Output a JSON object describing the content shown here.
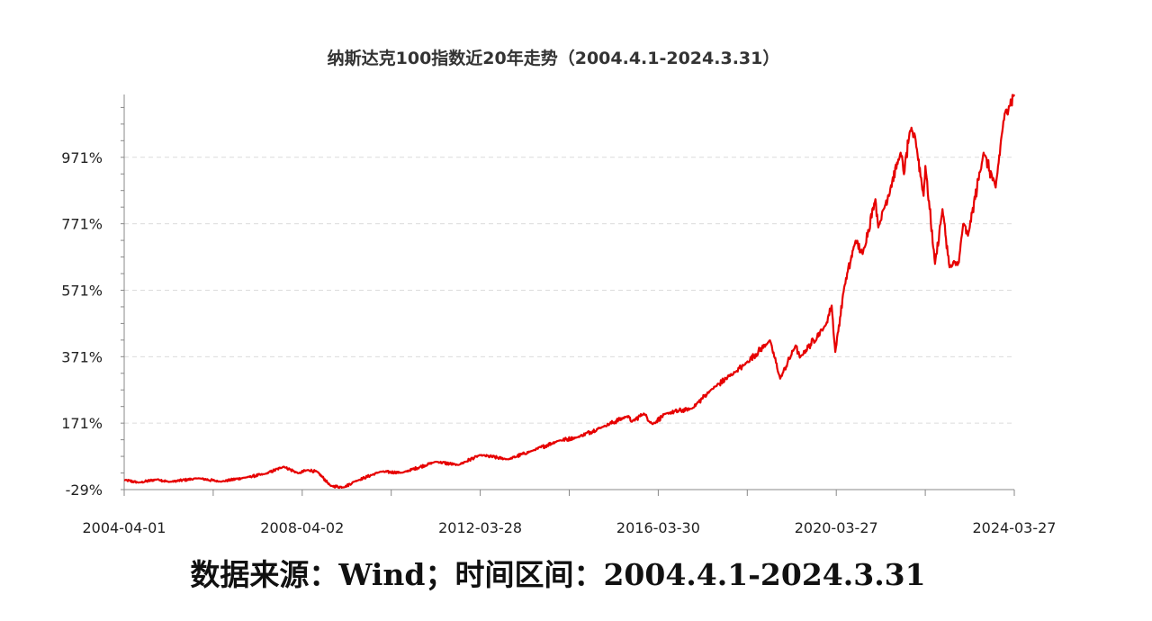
{
  "chart_data": {
    "type": "line",
    "title": "纳斯达克100指数近20年走势（2004.4.1-2024.3.31）",
    "ylabel": "",
    "xlabel": "",
    "y_unit": "%",
    "ylim": [
      -29,
      1160
    ],
    "y_ticks": [
      -29,
      171,
      371,
      571,
      771,
      971
    ],
    "y_tick_labels": [
      "-29%",
      "171%",
      "371%",
      "571%",
      "771%",
      "971%"
    ],
    "x_tick_labels": [
      "2004-04-01",
      "2008-04-02",
      "2012-03-28",
      "2016-03-30",
      "2020-03-27",
      "2024-03-27"
    ],
    "grid": "horizontal dashed",
    "series": [
      {
        "color": "#e60000",
        "points": [
          [
            "2004-04-01",
            0
          ],
          [
            "2004-08-01",
            -8
          ],
          [
            "2005-01-01",
            2
          ],
          [
            "2005-04-01",
            -6
          ],
          [
            "2005-12-01",
            5
          ],
          [
            "2006-06-01",
            -5
          ],
          [
            "2007-01-01",
            8
          ],
          [
            "2007-06-01",
            18
          ],
          [
            "2007-10-31",
            40
          ],
          [
            "2008-03-01",
            20
          ],
          [
            "2008-05-15",
            30
          ],
          [
            "2008-08-01",
            25
          ],
          [
            "2008-11-20",
            -18
          ],
          [
            "2009-03-09",
            -22
          ],
          [
            "2009-06-01",
            -5
          ],
          [
            "2010-01-01",
            25
          ],
          [
            "2010-07-01",
            22
          ],
          [
            "2011-04-01",
            55
          ],
          [
            "2011-10-01",
            45
          ],
          [
            "2012-03-28",
            75
          ],
          [
            "2012-11-15",
            62
          ],
          [
            "2013-06-01",
            88
          ],
          [
            "2013-12-31",
            118
          ],
          [
            "2014-06-01",
            128
          ],
          [
            "2014-12-31",
            160
          ],
          [
            "2015-07-20",
            192
          ],
          [
            "2015-08-25",
            175
          ],
          [
            "2015-12-01",
            200
          ],
          [
            "2016-02-11",
            168
          ],
          [
            "2016-06-01",
            200
          ],
          [
            "2016-12-31",
            215
          ],
          [
            "2017-06-01",
            270
          ],
          [
            "2017-12-31",
            328
          ],
          [
            "2018-03-01",
            345
          ],
          [
            "2018-10-01",
            420
          ],
          [
            "2018-12-24",
            305
          ],
          [
            "2019-04-30",
            405
          ],
          [
            "2019-06-03",
            368
          ],
          [
            "2019-12-31",
            465
          ],
          [
            "2020-02-19",
            525
          ],
          [
            "2020-03-20",
            385
          ],
          [
            "2020-06-01",
            580
          ],
          [
            "2020-09-02",
            720
          ],
          [
            "2020-10-30",
            680
          ],
          [
            "2021-02-12",
            845
          ],
          [
            "2021-03-08",
            760
          ],
          [
            "2021-09-07",
            985
          ],
          [
            "2021-10-04",
            920
          ],
          [
            "2021-11-19",
            1045
          ],
          [
            "2022-01-03",
            1035
          ],
          [
            "2022-03-14",
            855
          ],
          [
            "2022-03-29",
            945
          ],
          [
            "2022-06-16",
            650
          ],
          [
            "2022-08-16",
            815
          ],
          [
            "2022-10-13",
            640
          ],
          [
            "2022-12-28",
            655
          ],
          [
            "2023-02-02",
            770
          ],
          [
            "2023-03-13",
            735
          ],
          [
            "2023-07-19",
            985
          ],
          [
            "2023-10-26",
            880
          ],
          [
            "2023-12-29",
            1080
          ],
          [
            "2024-02-12",
            1125
          ],
          [
            "2024-03-27",
            1160
          ]
        ]
      }
    ]
  },
  "source_note": "数据来源：Wind；时间区间：2004.4.1-2024.3.31"
}
